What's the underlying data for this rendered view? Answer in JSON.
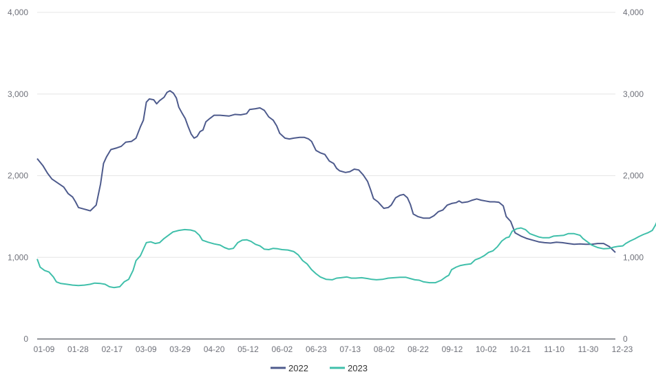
{
  "chart_data": {
    "type": "line",
    "title": "",
    "xlabel": "",
    "ylabel": "",
    "ylim": [
      0,
      4000
    ],
    "y_ticks": [
      0,
      1000,
      2000,
      3000,
      4000
    ],
    "y_tick_labels": [
      "0",
      "1,000",
      "2,000",
      "3,000",
      "4,000"
    ],
    "grid": true,
    "legend_position": "bottom-center",
    "x_categories": [
      "01-09",
      "01-28",
      "02-17",
      "03-09",
      "03-29",
      "04-20",
      "05-12",
      "06-02",
      "06-23",
      "07-13",
      "08-02",
      "08-22",
      "09-12",
      "10-02",
      "10-21",
      "11-10",
      "11-30",
      "12-23"
    ],
    "series": [
      {
        "name": "2022",
        "color": "#4d5a8c",
        "points": [
          [
            0,
            2210
          ],
          [
            0.2,
            2120
          ],
          [
            0.35,
            2030
          ],
          [
            0.5,
            1960
          ],
          [
            0.7,
            1910
          ],
          [
            0.9,
            1860
          ],
          [
            1.05,
            1780
          ],
          [
            1.2,
            1740
          ],
          [
            1.3,
            1680
          ],
          [
            1.4,
            1610
          ],
          [
            1.6,
            1590
          ],
          [
            1.8,
            1570
          ],
          [
            2.0,
            1640
          ],
          [
            2.15,
            1900
          ],
          [
            2.25,
            2150
          ],
          [
            2.35,
            2230
          ],
          [
            2.5,
            2320
          ],
          [
            2.7,
            2340
          ],
          [
            2.85,
            2360
          ],
          [
            3.0,
            2410
          ],
          [
            3.2,
            2420
          ],
          [
            3.35,
            2460
          ],
          [
            3.5,
            2600
          ],
          [
            3.6,
            2680
          ],
          [
            3.7,
            2900
          ],
          [
            3.8,
            2940
          ],
          [
            3.95,
            2930
          ],
          [
            4.05,
            2880
          ],
          [
            4.15,
            2920
          ],
          [
            4.3,
            2960
          ],
          [
            4.4,
            3020
          ],
          [
            4.5,
            3040
          ],
          [
            4.62,
            3010
          ],
          [
            4.72,
            2950
          ],
          [
            4.8,
            2840
          ],
          [
            4.92,
            2760
          ],
          [
            5.02,
            2700
          ],
          [
            5.12,
            2600
          ],
          [
            5.22,
            2510
          ],
          [
            5.32,
            2460
          ],
          [
            5.42,
            2480
          ],
          [
            5.52,
            2540
          ],
          [
            5.62,
            2560
          ],
          [
            5.72,
            2660
          ],
          [
            5.85,
            2700
          ],
          [
            6.0,
            2740
          ],
          [
            6.2,
            2740
          ],
          [
            6.5,
            2730
          ],
          [
            6.7,
            2750
          ],
          [
            6.9,
            2745
          ],
          [
            7.1,
            2760
          ],
          [
            7.2,
            2810
          ],
          [
            7.4,
            2820
          ],
          [
            7.55,
            2830
          ],
          [
            7.7,
            2800
          ],
          [
            7.85,
            2720
          ],
          [
            8.0,
            2680
          ],
          [
            8.12,
            2610
          ],
          [
            8.22,
            2520
          ],
          [
            8.4,
            2460
          ],
          [
            8.55,
            2450
          ],
          [
            8.7,
            2460
          ],
          [
            8.9,
            2470
          ],
          [
            9.05,
            2470
          ],
          [
            9.2,
            2450
          ],
          [
            9.3,
            2420
          ],
          [
            9.45,
            2310
          ],
          [
            9.6,
            2280
          ],
          [
            9.75,
            2260
          ],
          [
            9.9,
            2180
          ],
          [
            10.05,
            2150
          ],
          [
            10.15,
            2090
          ],
          [
            10.25,
            2060
          ],
          [
            10.45,
            2040
          ],
          [
            10.6,
            2050
          ],
          [
            10.75,
            2080
          ],
          [
            10.9,
            2070
          ],
          [
            11.05,
            2010
          ],
          [
            11.2,
            1930
          ],
          [
            11.3,
            1830
          ],
          [
            11.4,
            1720
          ],
          [
            11.55,
            1680
          ],
          [
            11.65,
            1640
          ],
          [
            11.75,
            1600
          ],
          [
            11.9,
            1610
          ],
          [
            12.0,
            1640
          ],
          [
            12.15,
            1730
          ],
          [
            12.3,
            1760
          ],
          [
            12.42,
            1770
          ],
          [
            12.55,
            1730
          ],
          [
            12.65,
            1650
          ],
          [
            12.75,
            1530
          ],
          [
            12.9,
            1500
          ],
          [
            13.1,
            1480
          ],
          [
            13.3,
            1480
          ],
          [
            13.45,
            1510
          ],
          [
            13.6,
            1560
          ],
          [
            13.75,
            1580
          ],
          [
            13.9,
            1640
          ],
          [
            14.05,
            1660
          ],
          [
            14.2,
            1670
          ],
          [
            14.3,
            1690
          ],
          [
            14.4,
            1670
          ],
          [
            14.6,
            1680
          ],
          [
            14.75,
            1700
          ],
          [
            14.9,
            1715
          ],
          [
            15.05,
            1700
          ],
          [
            15.2,
            1690
          ],
          [
            15.35,
            1680
          ],
          [
            15.5,
            1680
          ],
          [
            15.65,
            1675
          ],
          [
            15.8,
            1630
          ],
          [
            15.9,
            1500
          ],
          [
            16.05,
            1440
          ],
          [
            16.2,
            1300
          ],
          [
            16.4,
            1260
          ],
          [
            16.6,
            1230
          ],
          [
            16.8,
            1210
          ],
          [
            17.0,
            1190
          ],
          [
            17.2,
            1180
          ],
          [
            17.4,
            1175
          ],
          [
            17.6,
            1185
          ],
          [
            17.8,
            1180
          ],
          [
            18.0,
            1170
          ],
          [
            18.2,
            1160
          ],
          [
            18.4,
            1165
          ],
          [
            18.6,
            1160
          ],
          [
            18.8,
            1160
          ],
          [
            19.0,
            1170
          ],
          [
            19.2,
            1170
          ],
          [
            19.4,
            1130
          ],
          [
            19.6,
            1060
          ]
        ]
      },
      {
        "name": "2023",
        "color": "#3fbfaa",
        "points": [
          [
            0,
            980
          ],
          [
            0.1,
            880
          ],
          [
            0.25,
            840
          ],
          [
            0.4,
            820
          ],
          [
            0.55,
            760
          ],
          [
            0.65,
            700
          ],
          [
            0.8,
            680
          ],
          [
            1.0,
            670
          ],
          [
            1.2,
            660
          ],
          [
            1.4,
            655
          ],
          [
            1.6,
            660
          ],
          [
            1.8,
            670
          ],
          [
            1.95,
            685
          ],
          [
            2.15,
            680
          ],
          [
            2.3,
            670
          ],
          [
            2.45,
            640
          ],
          [
            2.6,
            630
          ],
          [
            2.8,
            640
          ],
          [
            2.95,
            700
          ],
          [
            3.1,
            730
          ],
          [
            3.25,
            840
          ],
          [
            3.35,
            960
          ],
          [
            3.5,
            1020
          ],
          [
            3.6,
            1100
          ],
          [
            3.7,
            1180
          ],
          [
            3.85,
            1190
          ],
          [
            4.0,
            1170
          ],
          [
            4.15,
            1180
          ],
          [
            4.3,
            1230
          ],
          [
            4.45,
            1270
          ],
          [
            4.6,
            1310
          ],
          [
            4.8,
            1330
          ],
          [
            5.0,
            1340
          ],
          [
            5.2,
            1335
          ],
          [
            5.35,
            1320
          ],
          [
            5.5,
            1270
          ],
          [
            5.6,
            1210
          ],
          [
            5.8,
            1185
          ],
          [
            6.0,
            1165
          ],
          [
            6.2,
            1150
          ],
          [
            6.35,
            1120
          ],
          [
            6.5,
            1100
          ],
          [
            6.65,
            1110
          ],
          [
            6.8,
            1180
          ],
          [
            6.95,
            1210
          ],
          [
            7.1,
            1215
          ],
          [
            7.25,
            1195
          ],
          [
            7.4,
            1160
          ],
          [
            7.55,
            1140
          ],
          [
            7.7,
            1100
          ],
          [
            7.85,
            1095
          ],
          [
            8.0,
            1110
          ],
          [
            8.15,
            1105
          ],
          [
            8.3,
            1095
          ],
          [
            8.5,
            1090
          ],
          [
            8.7,
            1070
          ],
          [
            8.85,
            1030
          ],
          [
            9.0,
            960
          ],
          [
            9.15,
            920
          ],
          [
            9.3,
            850
          ],
          [
            9.45,
            800
          ],
          [
            9.6,
            760
          ],
          [
            9.8,
            730
          ],
          [
            10.0,
            725
          ],
          [
            10.15,
            745
          ],
          [
            10.3,
            750
          ],
          [
            10.5,
            760
          ],
          [
            10.65,
            745
          ],
          [
            10.8,
            745
          ],
          [
            11.0,
            750
          ],
          [
            11.2,
            740
          ],
          [
            11.35,
            730
          ],
          [
            11.5,
            725
          ],
          [
            11.7,
            730
          ],
          [
            11.9,
            745
          ],
          [
            12.1,
            750
          ],
          [
            12.3,
            755
          ],
          [
            12.5,
            755
          ],
          [
            12.65,
            740
          ],
          [
            12.8,
            725
          ],
          [
            12.95,
            720
          ],
          [
            13.1,
            700
          ],
          [
            13.3,
            690
          ],
          [
            13.5,
            690
          ],
          [
            13.7,
            720
          ],
          [
            13.85,
            760
          ],
          [
            13.95,
            780
          ],
          [
            14.05,
            850
          ],
          [
            14.2,
            880
          ],
          [
            14.35,
            900
          ],
          [
            14.5,
            910
          ],
          [
            14.7,
            920
          ],
          [
            14.85,
            970
          ],
          [
            15.0,
            990
          ],
          [
            15.15,
            1020
          ],
          [
            15.3,
            1060
          ],
          [
            15.45,
            1080
          ],
          [
            15.6,
            1130
          ],
          [
            15.75,
            1200
          ],
          [
            15.9,
            1240
          ],
          [
            16.0,
            1250
          ],
          [
            16.1,
            1320
          ],
          [
            16.25,
            1350
          ],
          [
            16.4,
            1360
          ],
          [
            16.55,
            1340
          ],
          [
            16.7,
            1290
          ],
          [
            16.85,
            1270
          ],
          [
            17.0,
            1250
          ],
          [
            17.15,
            1240
          ],
          [
            17.35,
            1240
          ],
          [
            17.5,
            1260
          ],
          [
            17.7,
            1265
          ],
          [
            17.85,
            1270
          ],
          [
            18.0,
            1290
          ],
          [
            18.2,
            1290
          ],
          [
            18.4,
            1270
          ],
          [
            18.5,
            1230
          ],
          [
            18.65,
            1190
          ],
          [
            18.8,
            1150
          ],
          [
            19.0,
            1120
          ],
          [
            19.2,
            1105
          ],
          [
            19.4,
            1110
          ],
          [
            19.55,
            1125
          ],
          [
            19.7,
            1135
          ],
          [
            19.85,
            1140
          ],
          [
            19.95,
            1170
          ],
          [
            20.1,
            1200
          ],
          [
            20.25,
            1225
          ],
          [
            20.4,
            1255
          ],
          [
            20.55,
            1280
          ],
          [
            20.7,
            1300
          ],
          [
            20.85,
            1330
          ],
          [
            20.95,
            1390
          ],
          [
            21.0,
            1430
          ]
        ]
      }
    ]
  }
}
